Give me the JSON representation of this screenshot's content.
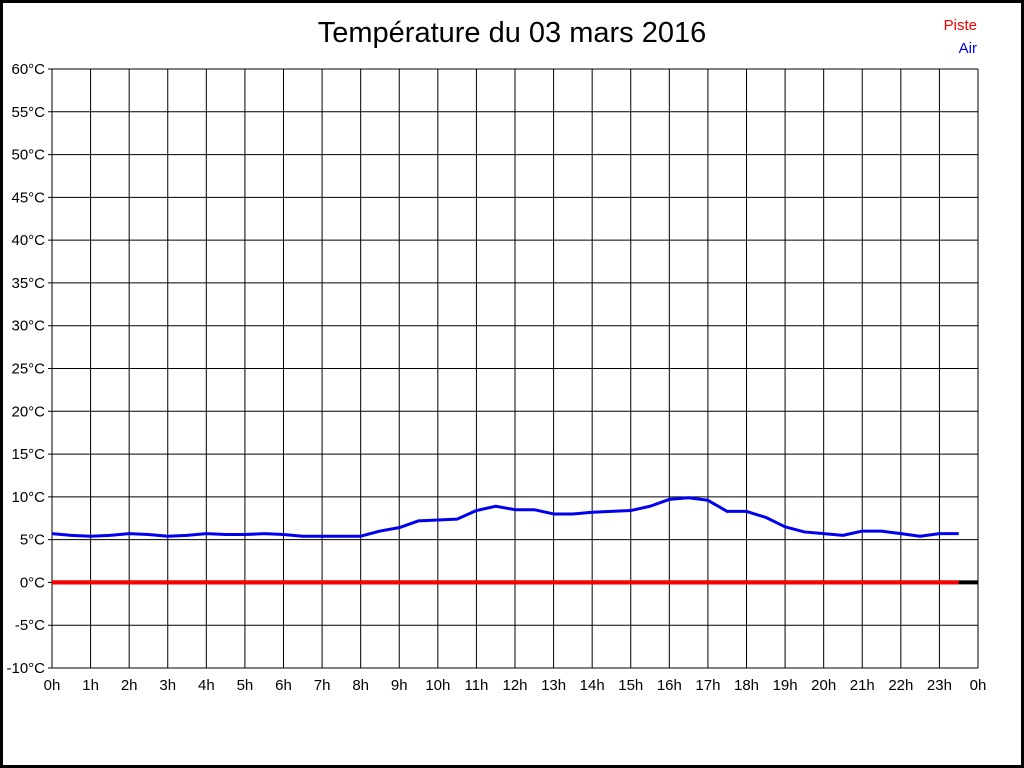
{
  "page": {
    "background": "#ffffff",
    "border_color": "#000000"
  },
  "legend": {
    "items": [
      {
        "label": "Piste",
        "color": "#ff0000"
      },
      {
        "label": "Air",
        "color": "#0000ee"
      }
    ]
  },
  "chart_data": {
    "type": "line",
    "title": "Température du 03 mars 2016",
    "xlabel": "",
    "ylabel": "",
    "xlim": [
      0,
      24
    ],
    "ylim": [
      -10,
      60
    ],
    "grid": true,
    "grid_color": "#000000",
    "legend_position": "top-right",
    "xtick_values": [
      0,
      1,
      2,
      3,
      4,
      5,
      6,
      7,
      8,
      9,
      10,
      11,
      12,
      13,
      14,
      15,
      16,
      17,
      18,
      19,
      20,
      21,
      22,
      23,
      24
    ],
    "xtick_labels": [
      "0h",
      "1h",
      "2h",
      "3h",
      "4h",
      "5h",
      "6h",
      "7h",
      "8h",
      "9h",
      "10h",
      "11h",
      "12h",
      "13h",
      "14h",
      "15h",
      "16h",
      "17h",
      "18h",
      "19h",
      "20h",
      "21h",
      "22h",
      "23h",
      "0h"
    ],
    "ytick_values": [
      60,
      55,
      50,
      45,
      40,
      35,
      30,
      25,
      20,
      15,
      10,
      5,
      0,
      -5,
      -10
    ],
    "ytick_labels": [
      "60°C",
      "55°C",
      "50°C",
      "45°C",
      "40°C",
      "35°C",
      "30°C",
      "25°C",
      "20°C",
      "15°C",
      "10°C",
      "5°C",
      "0°C",
      "-5°C",
      "-10°C"
    ],
    "baseline": {
      "value": 0,
      "color": "#000000",
      "width": 4
    },
    "series": [
      {
        "name": "Piste",
        "color": "#ff0000",
        "width": 4,
        "x": [
          0,
          23.5
        ],
        "values": [
          0,
          0
        ]
      },
      {
        "name": "Air",
        "color": "#0000ee",
        "width": 3,
        "x": [
          0,
          0.5,
          1,
          1.5,
          2,
          2.5,
          3,
          3.5,
          4,
          4.5,
          5,
          5.5,
          6,
          6.5,
          7,
          7.5,
          8,
          8.5,
          9,
          9.5,
          10,
          10.5,
          11,
          11.5,
          12,
          12.5,
          13,
          13.5,
          14,
          14.5,
          15,
          15.5,
          16,
          16.5,
          17,
          17.5,
          18,
          18.5,
          19,
          19.5,
          20,
          20.5,
          21,
          21.5,
          22,
          22.5,
          23,
          23.5
        ],
        "values": [
          5.7,
          5.5,
          5.4,
          5.5,
          5.7,
          5.6,
          5.4,
          5.5,
          5.7,
          5.6,
          5.6,
          5.7,
          5.6,
          5.4,
          5.4,
          5.4,
          5.4,
          6.0,
          6.4,
          7.2,
          7.3,
          7.4,
          8.4,
          8.9,
          8.5,
          8.5,
          8.0,
          8.0,
          8.2,
          8.3,
          8.4,
          8.9,
          9.7,
          9.9,
          9.6,
          8.3,
          8.3,
          7.6,
          6.5,
          5.9,
          5.7,
          5.5,
          6.0,
          6.0,
          5.7,
          5.4,
          5.7,
          5.7
        ]
      }
    ]
  }
}
